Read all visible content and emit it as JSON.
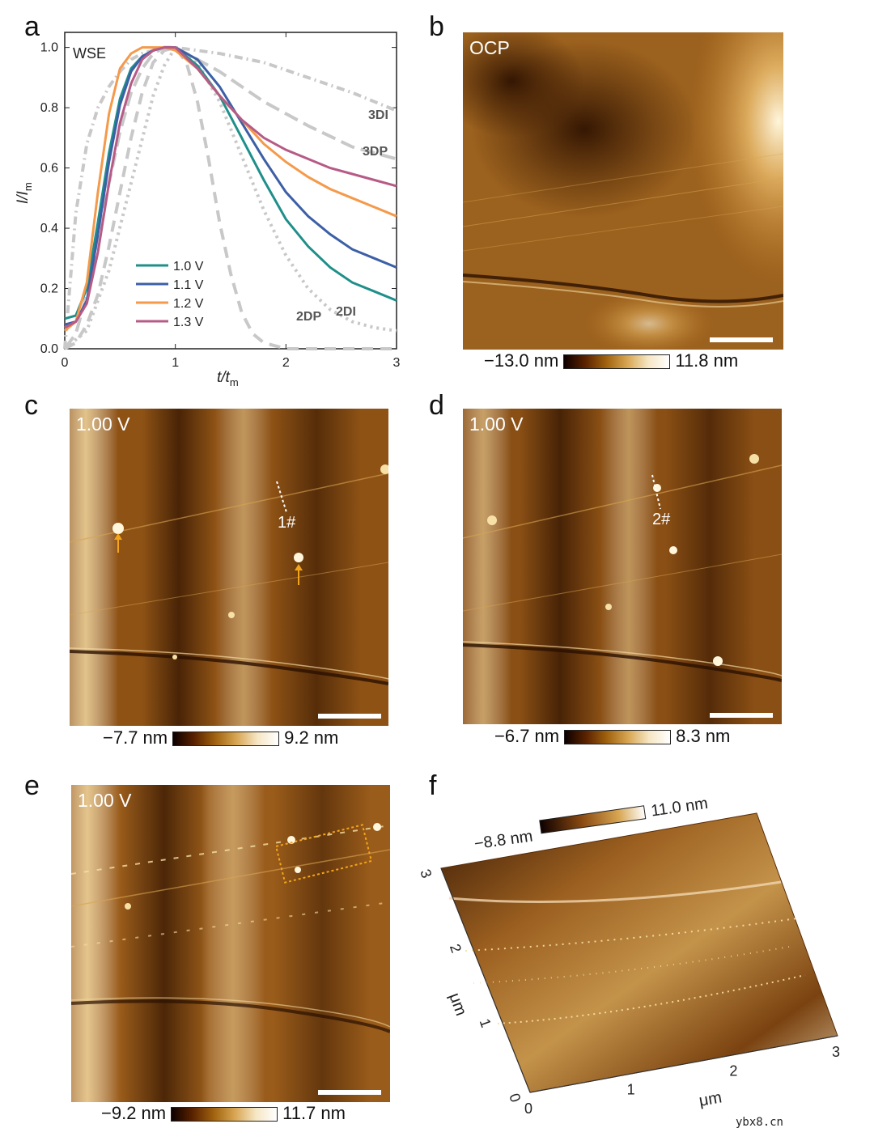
{
  "panels": {
    "a": "a",
    "b": "b",
    "c": "c",
    "d": "d",
    "e": "e",
    "f": "f"
  },
  "chart_data": {
    "type": "line",
    "title": "WSE",
    "xlabel": "t/t",
    "xlabel_sub": "m",
    "ylabel": "I/I",
    "ylabel_sub": "m",
    "xlim": [
      0,
      3
    ],
    "ylim": [
      0,
      1.05
    ],
    "x_ticks": [
      "0",
      "1",
      "2",
      "3"
    ],
    "y_ticks": [
      "0.0",
      "0.2",
      "0.4",
      "0.6",
      "0.8",
      "1.0"
    ],
    "series": [
      {
        "name": "1.0 V",
        "color": "#1f8f8a",
        "x": [
          0,
          0.1,
          0.2,
          0.3,
          0.4,
          0.5,
          0.6,
          0.7,
          0.8,
          0.9,
          1.0,
          1.2,
          1.4,
          1.6,
          1.8,
          2.0,
          2.2,
          2.4,
          2.6,
          2.8,
          3.0
        ],
        "y": [
          0.1,
          0.11,
          0.2,
          0.42,
          0.65,
          0.83,
          0.93,
          0.97,
          0.99,
          1.0,
          1.0,
          0.94,
          0.84,
          0.7,
          0.56,
          0.43,
          0.34,
          0.27,
          0.22,
          0.19,
          0.16
        ]
      },
      {
        "name": "1.1 V",
        "color": "#3c5fa6",
        "x": [
          0,
          0.1,
          0.2,
          0.3,
          0.4,
          0.5,
          0.6,
          0.7,
          0.8,
          0.9,
          1.0,
          1.2,
          1.4,
          1.6,
          1.8,
          2.0,
          2.2,
          2.4,
          2.6,
          2.8,
          3.0
        ],
        "y": [
          0.08,
          0.09,
          0.16,
          0.38,
          0.62,
          0.81,
          0.92,
          0.97,
          0.99,
          1.0,
          1.0,
          0.96,
          0.87,
          0.75,
          0.63,
          0.52,
          0.44,
          0.38,
          0.33,
          0.3,
          0.27
        ]
      },
      {
        "name": "1.2 V",
        "color": "#f5994a",
        "x": [
          0,
          0.1,
          0.2,
          0.3,
          0.4,
          0.5,
          0.6,
          0.7,
          0.8,
          0.9,
          1.0,
          1.2,
          1.4,
          1.6,
          1.8,
          2.0,
          2.2,
          2.4,
          2.6,
          2.8,
          3.0
        ],
        "y": [
          0.06,
          0.09,
          0.22,
          0.52,
          0.78,
          0.93,
          0.98,
          1.0,
          1.0,
          1.0,
          0.99,
          0.93,
          0.84,
          0.76,
          0.68,
          0.62,
          0.57,
          0.53,
          0.5,
          0.47,
          0.44
        ]
      },
      {
        "name": "1.3 V",
        "color": "#b65b86",
        "x": [
          0,
          0.1,
          0.2,
          0.3,
          0.4,
          0.5,
          0.6,
          0.7,
          0.8,
          0.9,
          1.0,
          1.2,
          1.4,
          1.6,
          1.8,
          2.0,
          2.2,
          2.4,
          2.6,
          2.8,
          3.0
        ],
        "y": [
          0.07,
          0.09,
          0.15,
          0.32,
          0.55,
          0.75,
          0.88,
          0.96,
          0.99,
          1.0,
          1.0,
          0.93,
          0.84,
          0.76,
          0.7,
          0.66,
          0.63,
          0.6,
          0.58,
          0.56,
          0.54
        ]
      }
    ],
    "models": [
      {
        "name": "3DI",
        "style": "dash-dot",
        "x": [
          0,
          0.1,
          0.2,
          0.3,
          0.4,
          0.5,
          0.6,
          0.7,
          0.8,
          0.9,
          1.0,
          1.4,
          1.8,
          2.2,
          2.6,
          3.0
        ],
        "y": [
          0.0,
          0.45,
          0.68,
          0.8,
          0.87,
          0.92,
          0.96,
          0.98,
          0.99,
          1.0,
          1.0,
          0.98,
          0.95,
          0.9,
          0.85,
          0.79
        ]
      },
      {
        "name": "3DP",
        "style": "long-dash",
        "x": [
          0,
          0.1,
          0.2,
          0.3,
          0.4,
          0.5,
          0.6,
          0.7,
          0.8,
          0.9,
          1.0,
          1.4,
          1.8,
          2.2,
          2.6,
          3.0
        ],
        "y": [
          0.0,
          0.05,
          0.18,
          0.36,
          0.55,
          0.72,
          0.85,
          0.93,
          0.98,
          1.0,
          1.0,
          0.92,
          0.82,
          0.74,
          0.67,
          0.63
        ]
      },
      {
        "name": "2DI",
        "style": "dot",
        "x": [
          0,
          0.2,
          0.4,
          0.6,
          0.8,
          0.9,
          1.0,
          1.2,
          1.4,
          1.6,
          1.8,
          2.0,
          2.2,
          2.4,
          2.6,
          2.8,
          3.0
        ],
        "y": [
          0.0,
          0.06,
          0.26,
          0.55,
          0.84,
          0.94,
          1.0,
          0.95,
          0.82,
          0.64,
          0.46,
          0.31,
          0.2,
          0.13,
          0.09,
          0.07,
          0.06
        ]
      },
      {
        "name": "2DP",
        "style": "dash",
        "x": [
          0,
          0.1,
          0.2,
          0.3,
          0.4,
          0.5,
          0.6,
          0.7,
          0.8,
          0.9,
          1.0,
          1.1,
          1.2,
          1.3,
          1.4,
          1.5,
          1.6,
          1.7,
          1.8,
          1.9,
          2.0,
          3.0
        ],
        "y": [
          0.0,
          0.02,
          0.08,
          0.18,
          0.34,
          0.52,
          0.7,
          0.85,
          0.95,
          0.99,
          1.0,
          0.95,
          0.82,
          0.63,
          0.42,
          0.25,
          0.12,
          0.05,
          0.02,
          0.01,
          0.0,
          0.0
        ]
      }
    ],
    "annotations": [
      "3DI",
      "3DP",
      "2DP",
      "2DI"
    ]
  },
  "afm": {
    "b": {
      "tag": "OCP",
      "cbar_min": "−13.0 nm",
      "cbar_max": "11.8 nm"
    },
    "c": {
      "tag": "1.00 V",
      "marker": "1#",
      "cbar_min": "−7.7 nm",
      "cbar_max": "9.2 nm"
    },
    "d": {
      "tag": "1.00 V",
      "marker": "2#",
      "cbar_min": "−6.7 nm",
      "cbar_max": "8.3 nm"
    },
    "e": {
      "tag": "1.00 V",
      "cbar_min": "−9.2 nm",
      "cbar_max": "11.7 nm"
    },
    "f": {
      "cbar_min": "−8.8 nm",
      "cbar_max": "11.0 nm",
      "x_ticks": [
        "0",
        "1",
        "2",
        "3"
      ],
      "y_ticks": [
        "0",
        "1",
        "2",
        "3"
      ],
      "x_unit": "μm",
      "y_unit": "μm"
    }
  },
  "colors": {
    "accent_arrow": "#f2a51a",
    "line_gray": "#c8c8c8"
  },
  "watermark": "ybx8.cn"
}
